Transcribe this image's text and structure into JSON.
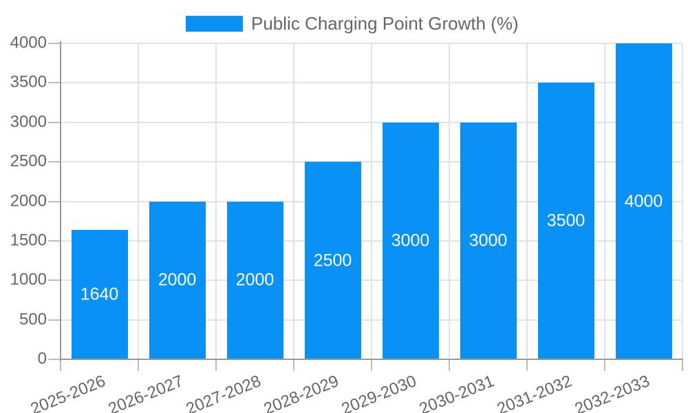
{
  "chart_data": {
    "type": "bar",
    "title": "",
    "legend": {
      "label": "Public Charging Point Growth (%)",
      "position": "top"
    },
    "categories": [
      "2025-2026",
      "2026-2027",
      "2027-2028",
      "2028-2029",
      "2029-2030",
      "2030-2031",
      "2031-2032",
      "2032-2033"
    ],
    "series": [
      {
        "name": "Public Charging Point Growth (%)",
        "values": [
          1640,
          2000,
          2000,
          2500,
          3000,
          3000,
          3500,
          4000
        ],
        "value_labels": [
          "1640",
          "2000",
          "2000",
          "2500",
          "3000",
          "3000",
          "3500",
          "4000"
        ]
      }
    ],
    "xlabel": "",
    "ylabel": "",
    "ylim": [
      0,
      4000
    ],
    "y_ticks": [
      "0",
      "500",
      "1000",
      "1500",
      "2000",
      "2500",
      "3000",
      "3500",
      "4000"
    ],
    "grid": true,
    "colors": {
      "bar": "#0991f5",
      "value_label": "#ffffff",
      "axis_text": "#666666",
      "grid_line": "#e3e3e3",
      "axis_line": "#999999",
      "tick_mark": "#bdbdbd",
      "background": "#ffffff"
    }
  }
}
